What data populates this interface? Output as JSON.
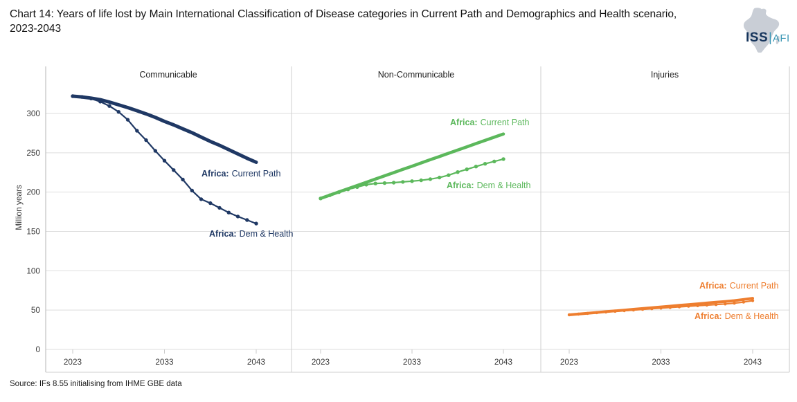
{
  "header": {
    "title": "Chart 14: Years of life lost by Main International Classification of Disease categories in Current Path and Demographics and Health scenario, 2023-2043",
    "logo": {
      "iss": "ISS",
      "separator": "|",
      "afi": "AFI",
      "africa_icon_color": "#c9ced6",
      "iss_color": "#16355c",
      "afi_color": "#3b97b5"
    }
  },
  "source": "Source: IFs 8.55 initialising from IHME GBE data",
  "chart_data": {
    "type": "line",
    "title": "Years of life lost by Main ICD categories, Current Path vs Demographics and Health scenario",
    "ylabel": "Million years",
    "xlabel": "",
    "ylim": [
      0,
      360
    ],
    "yticks": [
      0,
      50,
      100,
      150,
      200,
      250,
      300
    ],
    "xticks": [
      2023,
      2033,
      2043
    ],
    "year_start": 2023,
    "year_end": 2043,
    "grid": "horizontal",
    "legend_position": "inline-labels",
    "panels": [
      {
        "title": "Communicable",
        "color": "#1f3864",
        "series": [
          {
            "name": "Africa: Current Path",
            "label_prefix": "Africa:",
            "label_text": "Current Path",
            "style": "thick",
            "values": [
              322,
              321,
              319.5,
              317.5,
              314.5,
              311,
              307.5,
              303.5,
              299.5,
              295,
              290,
              285.5,
              280.5,
              275.5,
              270,
              264.5,
              259.5,
              254,
              248.5,
              243,
              238
            ]
          },
          {
            "name": "Africa: Dem & Health",
            "label_prefix": "Africa:",
            "label_text": "Dem & Health",
            "style": "marker",
            "values": [
              322,
              321,
              319,
              315,
              309.5,
              302,
              292,
              278,
              266,
              252.5,
              240,
              228,
              216,
              202,
              191,
              186,
              180,
              174,
              169,
              164.5,
              160
            ]
          }
        ]
      },
      {
        "title": "Non-Communicable",
        "color": "#5cb85c",
        "series": [
          {
            "name": "Africa: Current Path",
            "label_prefix": "Africa:",
            "label_text": "Current Path",
            "style": "thick",
            "values": [
              192,
              196.1,
              200.2,
              204.3,
              208.4,
              212.5,
              216.6,
              220.7,
              224.8,
              228.9,
              233,
              237.1,
              241.2,
              245.3,
              249.4,
              253.5,
              257.6,
              261.7,
              265.8,
              269.9,
              274
            ]
          },
          {
            "name": "Africa: Dem & Health",
            "label_prefix": "Africa:",
            "label_text": "Dem & Health",
            "style": "marker",
            "values": [
              192,
              196,
              200,
              203.5,
              206.5,
              209.5,
              211,
              211.5,
              212,
              213,
              214,
              215,
              216.5,
              218.5,
              221.5,
              225.5,
              229,
              232.5,
              236,
              239,
              242
            ]
          }
        ]
      },
      {
        "title": "Injuries",
        "color": "#ee7e2f",
        "series": [
          {
            "name": "Africa: Current Path",
            "label_prefix": "Africa:",
            "label_text": "Current Path",
            "style": "thick",
            "values": [
              44,
              45,
              46,
              47,
              48,
              49,
              50,
              51,
              52,
              53,
              54,
              55,
              56,
              57,
              58,
              59,
              60,
              61,
              62,
              63.5,
              65
            ]
          },
          {
            "name": "Africa: Dem & Health",
            "label_prefix": "Africa:",
            "label_text": "Dem & Health",
            "style": "marker",
            "values": [
              44,
              44.9,
              45.8,
              46.7,
              47.6,
              48.5,
              49.3,
              50.1,
              50.9,
              51.7,
              52.5,
              53.3,
              54.1,
              54.9,
              55.6,
              56.3,
              57,
              57.8,
              58.8,
              60.2,
              62
            ]
          }
        ]
      }
    ]
  }
}
